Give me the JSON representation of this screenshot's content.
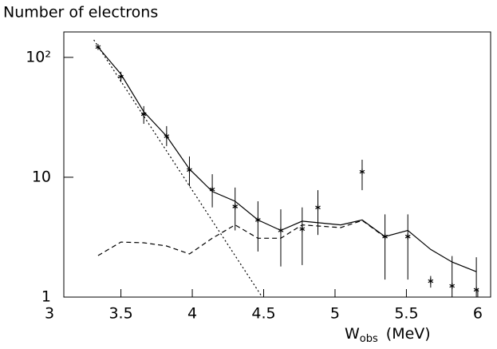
{
  "chart_data": {
    "type": "scatter",
    "title": "Number of electrons",
    "xlabel": "W",
    "xlabel_sub": "obs",
    "xlabel_unit": "(MeV)",
    "xlim": [
      3.1,
      6.09
    ],
    "ylim": [
      1,
      163
    ],
    "log_y": true,
    "color": "#000000",
    "xticks": [
      3,
      3.5,
      4,
      4.5,
      5,
      5.5,
      6
    ],
    "yticks": [
      1,
      10,
      {
        "value": 100,
        "label": "10²"
      }
    ],
    "series": [
      {
        "style": "points",
        "color": "#000000",
        "x": [
          3.34,
          3.5,
          3.66,
          3.82,
          3.98,
          4.14,
          4.3,
          4.46,
          4.62,
          4.77,
          4.88,
          5.19,
          5.35,
          5.51,
          5.67,
          5.82,
          5.99
        ],
        "values": [
          122,
          69,
          33.6,
          22,
          11.5,
          7.9,
          5.7,
          4.4,
          3.6,
          3.7,
          5.6,
          11.1,
          3.2,
          3.2,
          1.36,
          1.24,
          1.15
        ],
        "lower": [
          116,
          62.3,
          27.9,
          18.2,
          8.4,
          5.6,
          3.6,
          2.4,
          1.8,
          1.85,
          3.3,
          7.8,
          1.4,
          1.4,
          1.2,
          1,
          1
        ],
        "upper": [
          128,
          75.9,
          39.2,
          26.7,
          14.9,
          10.6,
          8.2,
          6.3,
          5.4,
          5.6,
          7.8,
          14,
          4.9,
          4.9,
          1.5,
          2.2,
          2.15
        ]
      },
      {
        "style": "solid",
        "color": "#000000",
        "x": [
          3.34,
          3.5,
          3.66,
          3.82,
          3.98,
          4.14,
          4.3,
          4.46,
          4.62,
          4.77,
          5.04,
          5.19,
          5.35,
          5.51,
          5.67,
          5.82,
          5.99
        ],
        "values": [
          122,
          72.4,
          35.2,
          22,
          11.7,
          7.6,
          6.3,
          4.4,
          3.6,
          4.3,
          4.0,
          4.4,
          3.2,
          3.6,
          2.5,
          1.96,
          1.63
        ]
      },
      {
        "style": "dashed",
        "color": "#000000",
        "x": [
          3.34,
          3.5,
          3.66,
          3.82,
          3.98,
          4.14,
          4.3,
          4.46,
          4.62,
          4.77,
          5.04,
          5.19,
          5.35
        ],
        "values": [
          2.22,
          2.88,
          2.84,
          2.67,
          2.29,
          3.1,
          4.0,
          3.1,
          3.1,
          4.0,
          3.8,
          4.36,
          3.16
        ]
      },
      {
        "style": "dotted",
        "color": "#000000",
        "x": [
          3.31,
          4.49
        ],
        "values": [
          140,
          1
        ]
      }
    ]
  }
}
